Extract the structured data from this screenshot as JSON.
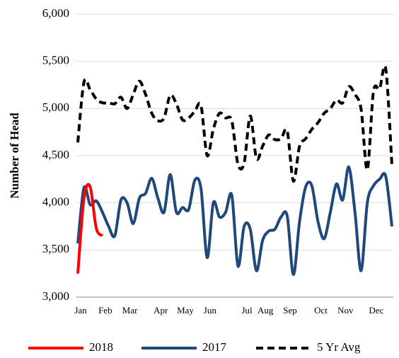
{
  "chart_data": {
    "type": "line",
    "ylabel": "Number  of Head",
    "categories": [
      "Jan",
      null,
      null,
      null,
      "Feb",
      null,
      null,
      null,
      "Mar",
      null,
      null,
      null,
      null,
      "Apr",
      null,
      null,
      null,
      "May",
      null,
      null,
      null,
      "Jun",
      null,
      null,
      null,
      null,
      null,
      "Jul",
      null,
      null,
      "Aug",
      null,
      null,
      null,
      "Sep",
      null,
      null,
      null,
      null,
      "Oct",
      null,
      null,
      null,
      "Nov",
      null,
      null,
      null,
      null,
      "Dec",
      null,
      null,
      null
    ],
    "series": [
      {
        "name": "2018",
        "color": "#ff0000",
        "dash": false,
        "values": [
          3250,
          4050,
          4170,
          3730,
          3650,
          null,
          null,
          null,
          null,
          null,
          null,
          null,
          null,
          null,
          null,
          null,
          null,
          null,
          null,
          null,
          null,
          null,
          null,
          null,
          null,
          null,
          null,
          null,
          null,
          null,
          null,
          null,
          null,
          null,
          null,
          null,
          null,
          null,
          null,
          null,
          null,
          null,
          null,
          null,
          null,
          null,
          null,
          null,
          null,
          null,
          null,
          null
        ]
      },
      {
        "name": "2017",
        "color": "#1f497d",
        "dash": false,
        "values": [
          3570,
          4160,
          3980,
          4020,
          3900,
          3750,
          3650,
          4030,
          4000,
          3780,
          4050,
          4100,
          4260,
          4050,
          3900,
          4300,
          3900,
          3950,
          3930,
          4240,
          4150,
          3420,
          4000,
          3850,
          3900,
          4080,
          3330,
          3750,
          3720,
          3280,
          3600,
          3700,
          3720,
          3850,
          3860,
          3240,
          3800,
          4170,
          4180,
          3800,
          3620,
          3900,
          4200,
          4030,
          4380,
          3900,
          3280,
          4000,
          4180,
          4250,
          4280,
          3750
        ]
      },
      {
        "name": "5 Yr Avg",
        "color": "#000000",
        "dash": true,
        "values": [
          4640,
          5280,
          5200,
          5100,
          5060,
          5060,
          5050,
          5120,
          5000,
          5150,
          5290,
          5150,
          4950,
          4870,
          4900,
          5140,
          5050,
          4880,
          4900,
          4970,
          5030,
          4500,
          4780,
          4950,
          4900,
          4870,
          4410,
          4420,
          4920,
          4470,
          4600,
          4720,
          4670,
          4680,
          4760,
          4230,
          4600,
          4680,
          4780,
          4850,
          4950,
          5000,
          5090,
          5060,
          5230,
          5150,
          4990,
          4350,
          5180,
          5210,
          5420,
          4400
        ]
      }
    ],
    "ylim": [
      3000,
      6000
    ],
    "yticks": [
      {
        "value": 3000,
        "label": "3,000"
      },
      {
        "value": 3500,
        "label": "3,500"
      },
      {
        "value": 4000,
        "label": "4,000"
      },
      {
        "value": 4500,
        "label": "4,500"
      },
      {
        "value": 5000,
        "label": "5,000"
      },
      {
        "value": 5500,
        "label": "5,500"
      },
      {
        "value": 6000,
        "label": "6,000"
      }
    ],
    "grid": true,
    "legend": "bottom"
  }
}
